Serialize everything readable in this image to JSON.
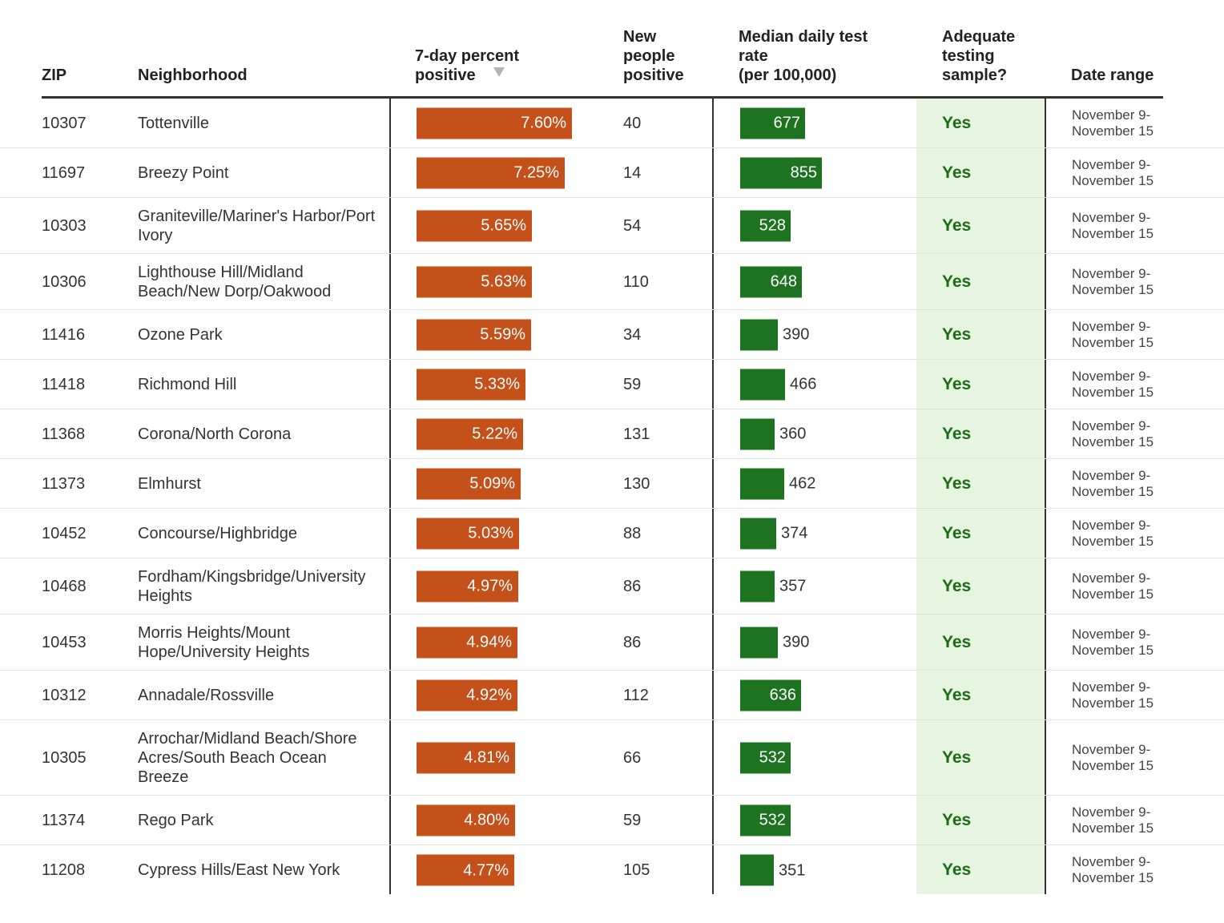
{
  "header": {
    "zip": "ZIP",
    "neighborhood": "Neighborhood",
    "pct_positive": "7-day percent\npositive",
    "new_positive": "New\npeople\npositive",
    "test_rate": "Median daily test\nrate\n(per 100,000)",
    "adequate": "Adequate\ntesting\nsample?",
    "date_range": "Date range"
  },
  "colors": {
    "pct_bar": "#c4501a",
    "rate_bar": "#1e7321",
    "adequate_bg": "#e6f5df",
    "adequate_text": "#1e6b16"
  },
  "chart_data": {
    "type": "table",
    "sorted_by": "7-day percent positive",
    "sort_order": "descending",
    "pct_max": 7.6,
    "rate_max": 855,
    "rows": [
      {
        "zip": "10307",
        "neighborhood": "Tottenville",
        "pct": 7.6,
        "pct_label": "7.60%",
        "new": "40",
        "rate": 677,
        "rate_label": "677",
        "adequate": "Yes",
        "date": "November 9-\nNovember 15"
      },
      {
        "zip": "11697",
        "neighborhood": "Breezy Point",
        "pct": 7.25,
        "pct_label": "7.25%",
        "new": "14",
        "rate": 855,
        "rate_label": "855",
        "adequate": "Yes",
        "date": "November 9-\nNovember 15"
      },
      {
        "zip": "10303",
        "neighborhood": "Graniteville/Mariner's Harbor/Port Ivory",
        "pct": 5.65,
        "pct_label": "5.65%",
        "new": "54",
        "rate": 528,
        "rate_label": "528",
        "adequate": "Yes",
        "date": "November 9-\nNovember 15"
      },
      {
        "zip": "10306",
        "neighborhood": "Lighthouse Hill/Midland Beach/New Dorp/Oakwood",
        "pct": 5.63,
        "pct_label": "5.63%",
        "new": "110",
        "rate": 648,
        "rate_label": "648",
        "adequate": "Yes",
        "date": "November 9-\nNovember 15"
      },
      {
        "zip": "11416",
        "neighborhood": "Ozone Park",
        "pct": 5.59,
        "pct_label": "5.59%",
        "new": "34",
        "rate": 390,
        "rate_label": "390",
        "adequate": "Yes",
        "date": "November 9-\nNovember 15"
      },
      {
        "zip": "11418",
        "neighborhood": "Richmond Hill",
        "pct": 5.33,
        "pct_label": "5.33%",
        "new": "59",
        "rate": 466,
        "rate_label": "466",
        "adequate": "Yes",
        "date": "November 9-\nNovember 15"
      },
      {
        "zip": "11368",
        "neighborhood": "Corona/North Corona",
        "pct": 5.22,
        "pct_label": "5.22%",
        "new": "131",
        "rate": 360,
        "rate_label": "360",
        "adequate": "Yes",
        "date": "November 9-\nNovember 15"
      },
      {
        "zip": "11373",
        "neighborhood": "Elmhurst",
        "pct": 5.09,
        "pct_label": "5.09%",
        "new": "130",
        "rate": 462,
        "rate_label": "462",
        "adequate": "Yes",
        "date": "November 9-\nNovember 15"
      },
      {
        "zip": "10452",
        "neighborhood": "Concourse/Highbridge",
        "pct": 5.03,
        "pct_label": "5.03%",
        "new": "88",
        "rate": 374,
        "rate_label": "374",
        "adequate": "Yes",
        "date": "November 9-\nNovember 15"
      },
      {
        "zip": "10468",
        "neighborhood": "Fordham/Kingsbridge/University Heights",
        "pct": 4.97,
        "pct_label": "4.97%",
        "new": "86",
        "rate": 357,
        "rate_label": "357",
        "adequate": "Yes",
        "date": "November 9-\nNovember 15"
      },
      {
        "zip": "10453",
        "neighborhood": "Morris Heights/Mount Hope/University Heights",
        "pct": 4.94,
        "pct_label": "4.94%",
        "new": "86",
        "rate": 390,
        "rate_label": "390",
        "adequate": "Yes",
        "date": "November 9-\nNovember 15"
      },
      {
        "zip": "10312",
        "neighborhood": "Annadale/Rossville",
        "pct": 4.92,
        "pct_label": "4.92%",
        "new": "112",
        "rate": 636,
        "rate_label": "636",
        "adequate": "Yes",
        "date": "November 9-\nNovember 15"
      },
      {
        "zip": "10305",
        "neighborhood": "Arrochar/Midland Beach/Shore Acres/South Beach Ocean Breeze",
        "pct": 4.81,
        "pct_label": "4.81%",
        "new": "66",
        "rate": 532,
        "rate_label": "532",
        "adequate": "Yes",
        "date": "November 9-\nNovember 15"
      },
      {
        "zip": "11374",
        "neighborhood": "Rego Park",
        "pct": 4.8,
        "pct_label": "4.80%",
        "new": "59",
        "rate": 532,
        "rate_label": "532",
        "adequate": "Yes",
        "date": "November 9-\nNovember 15"
      },
      {
        "zip": "11208",
        "neighborhood": "Cypress Hills/East New York",
        "pct": 4.77,
        "pct_label": "4.77%",
        "new": "105",
        "rate": 351,
        "rate_label": "351",
        "adequate": "Yes",
        "date": "November 9-\nNovember 15"
      }
    ]
  }
}
